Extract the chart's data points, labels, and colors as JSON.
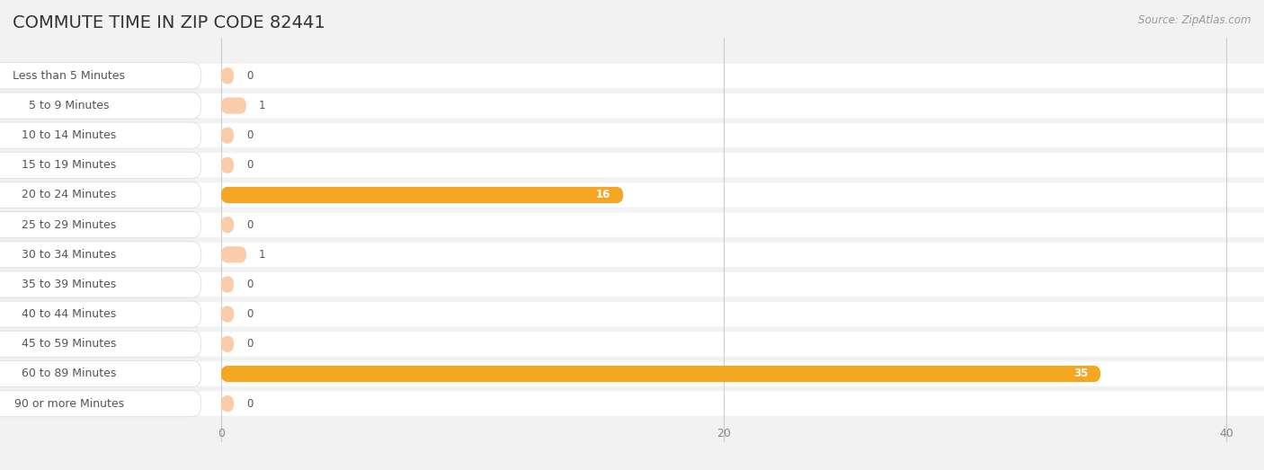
{
  "title": "COMMUTE TIME IN ZIP CODE 82441",
  "source": "Source: ZipAtlas.com",
  "categories": [
    "Less than 5 Minutes",
    "5 to 9 Minutes",
    "10 to 14 Minutes",
    "15 to 19 Minutes",
    "20 to 24 Minutes",
    "25 to 29 Minutes",
    "30 to 34 Minutes",
    "35 to 39 Minutes",
    "40 to 44 Minutes",
    "45 to 59 Minutes",
    "60 to 89 Minutes",
    "90 or more Minutes"
  ],
  "values": [
    0,
    1,
    0,
    0,
    16,
    0,
    1,
    0,
    0,
    0,
    35,
    0
  ],
  "max_val": 40,
  "xticks": [
    0,
    20,
    40
  ],
  "bar_color_high": "#F5A623",
  "bar_color_low": "#FACCAA",
  "background_color": "#f2f2f2",
  "row_bg": "#ffffff",
  "title_fontsize": 14,
  "label_fontsize": 9,
  "value_label_fontsize": 8.5,
  "source_fontsize": 8.5,
  "title_color": "#333333",
  "label_color": "#555555",
  "tick_color": "#888888"
}
